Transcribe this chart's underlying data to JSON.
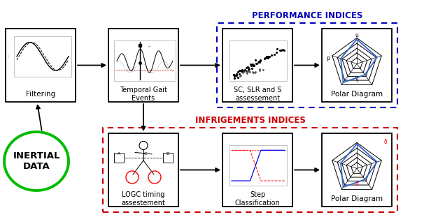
{
  "bg_color": "#ffffff",
  "title_perf": "PERFORMANCE INDICES",
  "title_infrig": "INFRIGEMENTS INDICES",
  "title_perf_color": "#0000bb",
  "title_infrig_color": "#cc0000",
  "box_border_color": "#000000",
  "perf_dashed_color": "#0000bb",
  "infrig_dashed_color": "#cc0000",
  "inertial_ellipse_color": "#00bb00",
  "inertial_text": "INERTIAL\nDATA",
  "arrow_color": "#000000",
  "font_size_box": 7.5,
  "font_size_title": 8.5,
  "font_size_inertial": 9.5,
  "fig_w": 6.16,
  "fig_h": 3.21,
  "dpi": 100
}
